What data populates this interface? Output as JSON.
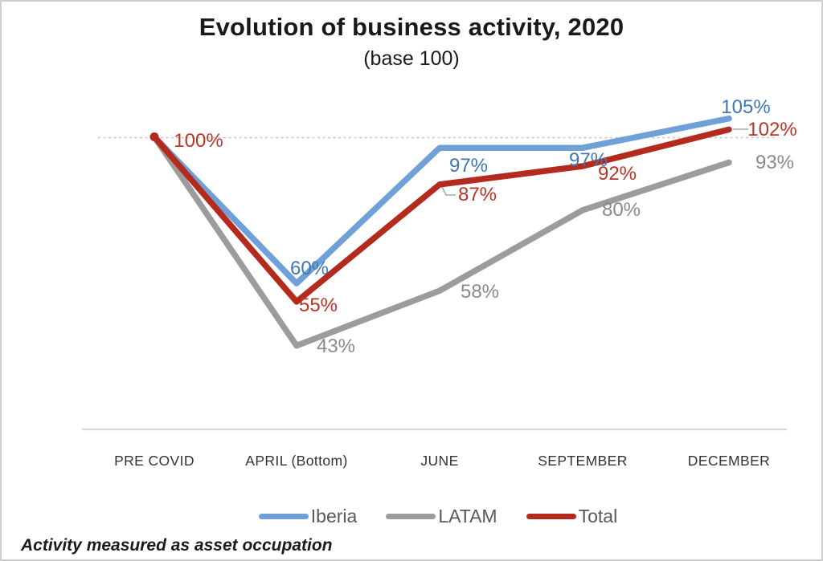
{
  "title": "Evolution of business activity, 2020",
  "subtitle": "(base 100)",
  "footnote": "Activity measured as asset occupation",
  "colors": {
    "iberia_line": "#6FA0D8",
    "iberia_label": "#3F76B6",
    "latam_line": "#9C9C9C",
    "latam_label": "#8A8A8A",
    "total_line": "#B42B1E",
    "total_label": "#BA3328",
    "gridline": "#C6C6C6",
    "axis_line": "#D9D9D9",
    "leader_line": "#A8A8A8",
    "axis_text": "#333333",
    "legend_text": "#595959"
  },
  "chart_data": {
    "type": "line",
    "title": "Evolution of business activity, 2020",
    "subtitle": "(base 100)",
    "categories": [
      "PRE COVID",
      "APRIL (Bottom)",
      "JUNE",
      "SEPTEMBER",
      "DECEMBER"
    ],
    "series": [
      {
        "name": "Iberia",
        "color": "#6FA0D8",
        "label_color": "#3F76B6",
        "values": [
          100,
          60,
          97,
          97,
          105
        ],
        "point_labels": [
          "",
          "60%",
          "97%",
          "97%",
          "105%"
        ]
      },
      {
        "name": "LATAM",
        "color": "#9C9C9C",
        "label_color": "#8A8A8A",
        "values": [
          100,
          43,
          58,
          80,
          93
        ],
        "point_labels": [
          "",
          "43%",
          "58%",
          "80%",
          "93%"
        ]
      },
      {
        "name": "Total",
        "color": "#B42B1E",
        "label_color": "#BA3328",
        "values": [
          100,
          55,
          87,
          92,
          102
        ],
        "point_labels": [
          "100%",
          "55%",
          "87%",
          "92%",
          "102%"
        ]
      }
    ],
    "baseline_value": 100,
    "baseline_label": "100%",
    "ylim": [
      20,
      110
    ],
    "grid": "single dashed horizontal line at 100 only, no y-axis labels",
    "legend_position": "bottom"
  }
}
